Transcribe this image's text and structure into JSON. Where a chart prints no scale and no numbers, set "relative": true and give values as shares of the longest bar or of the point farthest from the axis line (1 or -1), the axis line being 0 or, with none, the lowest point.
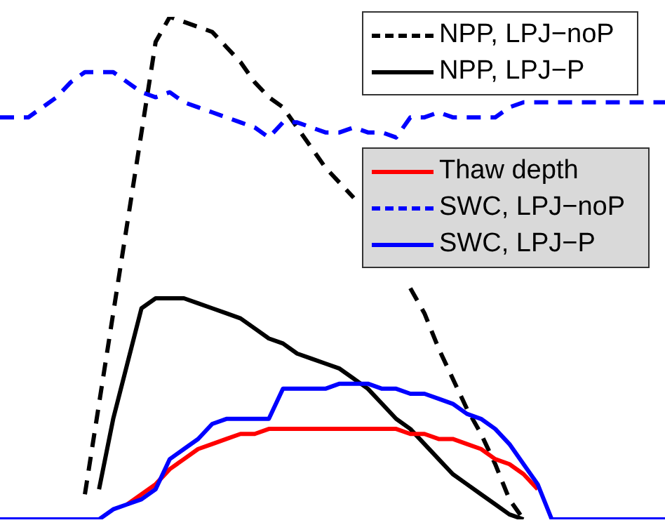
{
  "chart_data": {
    "type": "line",
    "relative": true,
    "legend": "top right",
    "categories": [
      null,
      null,
      null,
      null,
      null,
      null,
      null,
      null,
      null,
      null,
      null,
      null,
      null,
      null,
      null,
      null,
      null,
      null,
      null,
      null,
      null,
      null,
      null,
      null,
      null,
      null,
      null,
      null,
      null,
      null,
      null,
      null,
      null,
      null,
      null,
      null,
      null,
      null,
      null,
      null,
      null,
      null,
      null,
      null,
      null,
      null,
      null,
      null
    ],
    "series": [
      {
        "name": "NPP, LPJ−noP",
        "color": "#000000",
        "line_style": "dashed",
        "values": [
          null,
          null,
          null,
          null,
          null,
          null,
          0.05,
          0.23,
          0.41,
          0.59,
          0.77,
          0.95,
          1,
          0.99,
          0.98,
          0.97,
          0.94,
          0.91,
          0.87,
          0.84,
          0.82,
          0.78,
          0.74,
          0.7,
          0.67,
          0.64,
          null,
          null,
          null,
          0.46,
          0.41,
          0.34,
          0.28,
          0.22,
          0.17,
          0.11,
          0.04,
          0,
          null,
          null,
          null,
          null,
          null,
          null,
          null,
          null,
          null,
          null
        ]
      },
      {
        "name": "NPP, LPJ−P",
        "color": "#000000",
        "line_style": "solid",
        "values": [
          null,
          null,
          null,
          null,
          null,
          null,
          null,
          0.06,
          0.2,
          0.31,
          0.42,
          0.44,
          0.44,
          0.44,
          0.43,
          0.42,
          0.41,
          0.4,
          0.38,
          0.36,
          0.35,
          0.33,
          0.32,
          0.31,
          0.3,
          0.28,
          0.26,
          0.23,
          0.2,
          0.18,
          0.15,
          0.12,
          0.09,
          0.07,
          0.05,
          0.03,
          0.01,
          0,
          null,
          null,
          null,
          null,
          null,
          null,
          null,
          null,
          null,
          null
        ]
      },
      {
        "name": "Thaw depth",
        "color": "#ff0000",
        "line_style": "solid",
        "values": [
          null,
          null,
          null,
          null,
          null,
          null,
          null,
          null,
          null,
          0.03,
          0.05,
          0.07,
          0.1,
          0.12,
          0.14,
          0.15,
          0.16,
          0.17,
          0.17,
          0.18,
          0.18,
          0.18,
          0.18,
          0.18,
          0.18,
          0.18,
          0.18,
          0.18,
          0.18,
          0.17,
          0.17,
          0.16,
          0.16,
          0.15,
          0.14,
          0.12,
          0.11,
          0.09,
          0.06,
          null,
          null,
          null,
          null,
          null,
          null,
          null,
          null,
          null
        ]
      },
      {
        "name": "SWC, LPJ−noP",
        "color": "#0000ff",
        "line_style": "dashed",
        "values": [
          0.8,
          0.8,
          0.8,
          0.82,
          0.84,
          0.87,
          0.89,
          0.89,
          0.89,
          0.87,
          0.85,
          0.84,
          0.85,
          0.83,
          0.82,
          0.81,
          0.8,
          0.79,
          0.78,
          0.76,
          0.79,
          0.79,
          0.78,
          0.77,
          0.77,
          0.78,
          0.77,
          0.77,
          0.76,
          0.8,
          0.8,
          0.81,
          0.8,
          0.8,
          0.8,
          0.8,
          0.82,
          0.83,
          0.83,
          0.83,
          0.83,
          0.83,
          0.83,
          0.83,
          0.83,
          0.83,
          0.83,
          0.83
        ]
      },
      {
        "name": "SWC, LPJ−P",
        "color": "#0000ff",
        "line_style": "solid",
        "values": [
          0,
          0,
          0,
          0,
          0,
          0,
          0,
          0,
          0.02,
          0.03,
          0.04,
          0.06,
          0.12,
          0.14,
          0.16,
          0.19,
          0.2,
          0.2,
          0.2,
          0.2,
          0.26,
          0.26,
          0.26,
          0.26,
          0.27,
          0.27,
          0.27,
          0.26,
          0.26,
          0.25,
          0.25,
          0.24,
          0.23,
          0.21,
          0.2,
          0.18,
          0.15,
          0.11,
          0.07,
          0,
          0,
          0,
          0,
          0,
          0,
          0,
          0,
          0
        ]
      }
    ]
  }
}
